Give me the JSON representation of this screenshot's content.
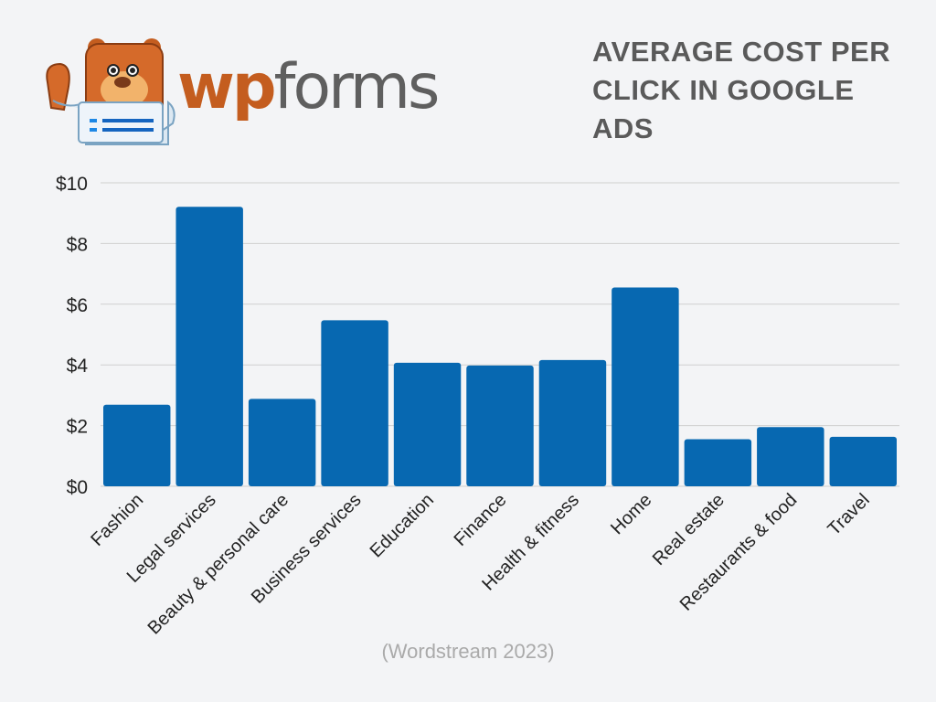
{
  "logo": {
    "text_wp": "wp",
    "text_forms": "forms",
    "mascot": "bear-mascot-icon"
  },
  "colors": {
    "bar": "#0768b1",
    "grid": "#cfcfcf",
    "title": "#5a5a5a",
    "logo_orange": "#c45d1f",
    "logo_gray": "#5f5f5f"
  },
  "chart_data": {
    "type": "bar",
    "title": "AVERAGE COST PER CLICK IN GOOGLE ADS",
    "xlabel": "",
    "ylabel": "",
    "ylim": [
      0,
      10
    ],
    "yticks": [
      0,
      2,
      4,
      6,
      8,
      10
    ],
    "ytick_labels": [
      "$0",
      "$2",
      "$4",
      "$6",
      "$8",
      "$10"
    ],
    "grid": true,
    "categories": [
      "Fashion",
      "Legal services",
      "Beauty & personal care",
      "Business services",
      "Education",
      "Finance",
      "Health & fitness",
      "Home",
      "Real estate",
      "Restaurants & food",
      "Travel"
    ],
    "values": [
      2.69,
      9.21,
      2.88,
      5.47,
      4.07,
      3.98,
      4.16,
      6.55,
      1.55,
      1.95,
      1.63
    ],
    "source": "(Wordstream 2023)"
  }
}
